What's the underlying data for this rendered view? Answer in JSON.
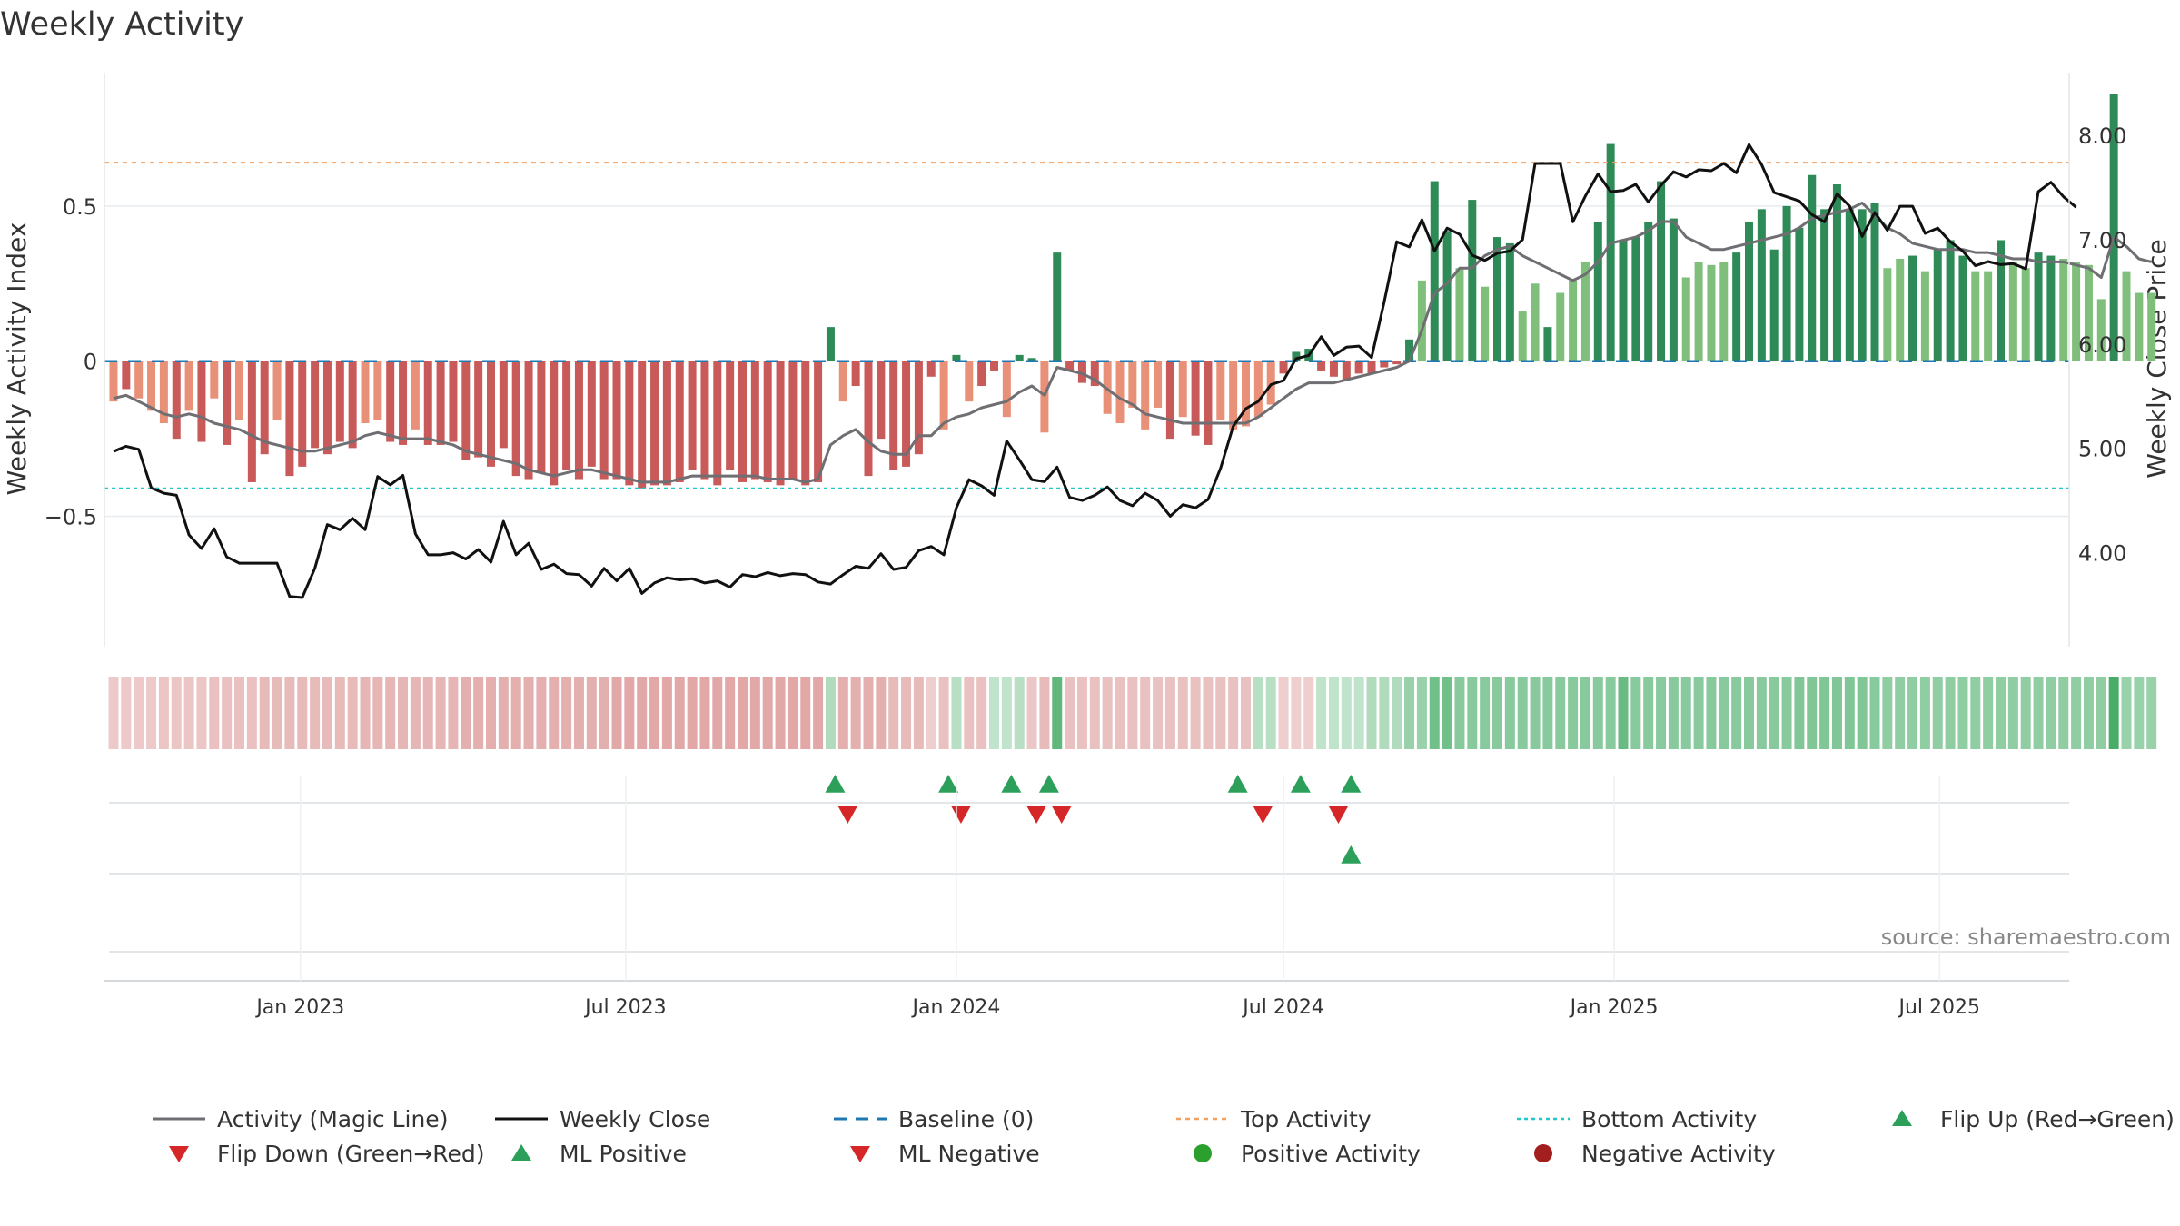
{
  "chart_data": {
    "type": "bar",
    "title": "Weekly Activity",
    "source": "source: sharemaestro.com",
    "ylabel_left": "Weekly Activity Index",
    "ylabel_right": "Weekly Close Price",
    "left_axis": {
      "range": [
        -0.92,
        0.93
      ],
      "ticks": [
        {
          "v": 0.5,
          "label": "0.5"
        },
        {
          "v": 0,
          "label": "0"
        },
        {
          "v": -0.5,
          "label": "−0.5"
        }
      ]
    },
    "right_axis": {
      "range": [
        3.1,
        8.6
      ],
      "ticks": [
        {
          "v": 8.0,
          "label": "8.00"
        },
        {
          "v": 7.0,
          "label": "7.00"
        },
        {
          "v": 6.0,
          "label": "6.00"
        },
        {
          "v": 5.0,
          "label": "5.00"
        },
        {
          "v": 4.0,
          "label": "4.00"
        }
      ]
    },
    "x_ticks": [
      {
        "date": "2023-01-01",
        "label": "Jan 2023"
      },
      {
        "date": "2023-07-01",
        "label": "Jul 2023"
      },
      {
        "date": "2024-01-01",
        "label": "Jan 2024"
      },
      {
        "date": "2024-07-01",
        "label": "Jul 2024"
      },
      {
        "date": "2025-01-01",
        "label": "Jan 2025"
      },
      {
        "date": "2025-07-01",
        "label": "Jul 2025"
      }
    ],
    "start_date": "2022-09-19",
    "activity": [
      -0.13,
      -0.09,
      -0.12,
      -0.16,
      -0.2,
      -0.25,
      -0.16,
      -0.26,
      -0.12,
      -0.27,
      -0.19,
      -0.39,
      -0.3,
      -0.19,
      -0.37,
      -0.34,
      -0.28,
      -0.3,
      -0.26,
      -0.28,
      -0.2,
      -0.19,
      -0.26,
      -0.27,
      -0.22,
      -0.27,
      -0.27,
      -0.26,
      -0.32,
      -0.31,
      -0.34,
      -0.28,
      -0.37,
      -0.38,
      -0.36,
      -0.4,
      -0.35,
      -0.38,
      -0.34,
      -0.38,
      -0.38,
      -0.4,
      -0.41,
      -0.4,
      -0.4,
      -0.39,
      -0.35,
      -0.38,
      -0.4,
      -0.35,
      -0.39,
      -0.38,
      -0.39,
      -0.4,
      -0.38,
      -0.4,
      -0.39,
      0.11,
      -0.13,
      -0.08,
      -0.37,
      -0.25,
      -0.35,
      -0.34,
      -0.3,
      -0.05,
      -0.22,
      0.02,
      -0.13,
      -0.08,
      -0.03,
      -0.18,
      0.02,
      0.01,
      -0.23,
      0.35,
      -0.03,
      -0.07,
      -0.08,
      -0.17,
      -0.2,
      -0.15,
      -0.22,
      -0.15,
      -0.25,
      -0.18,
      -0.24,
      -0.27,
      -0.19,
      -0.22,
      -0.21,
      -0.18,
      -0.14,
      -0.04,
      0.03,
      0.04,
      -0.03,
      -0.05,
      -0.06,
      -0.04,
      -0.04,
      -0.02,
      -0.01,
      0.07,
      0.26,
      0.58,
      0.42,
      0.3,
      0.52,
      0.24,
      0.4,
      0.38,
      0.16,
      0.25,
      0.11,
      0.22,
      0.26,
      0.32,
      0.45,
      0.7,
      0.39,
      0.4,
      0.45,
      0.58,
      0.46,
      0.27,
      0.32,
      0.31,
      0.32,
      0.35,
      0.45,
      0.49,
      0.36,
      0.5,
      0.43,
      0.6,
      0.49,
      0.57,
      0.49,
      0.49,
      0.51,
      0.3,
      0.33,
      0.34,
      0.29,
      0.36,
      0.39,
      0.34,
      0.29,
      0.29,
      0.39,
      0.32,
      0.3,
      0.35,
      0.34,
      0.33,
      0.32,
      0.31,
      0.2,
      0.86,
      0.29,
      0.22,
      0.22
    ],
    "magic_line": [
      -0.12,
      -0.11,
      -0.13,
      -0.15,
      -0.17,
      -0.18,
      -0.17,
      -0.18,
      -0.2,
      -0.21,
      -0.22,
      -0.24,
      -0.26,
      -0.27,
      -0.28,
      -0.29,
      -0.29,
      -0.28,
      -0.27,
      -0.26,
      -0.24,
      -0.23,
      -0.24,
      -0.25,
      -0.25,
      -0.25,
      -0.26,
      -0.27,
      -0.29,
      -0.3,
      -0.31,
      -0.32,
      -0.33,
      -0.35,
      -0.36,
      -0.37,
      -0.36,
      -0.35,
      -0.35,
      -0.36,
      -0.37,
      -0.38,
      -0.39,
      -0.39,
      -0.39,
      -0.38,
      -0.37,
      -0.37,
      -0.37,
      -0.37,
      -0.37,
      -0.37,
      -0.38,
      -0.38,
      -0.38,
      -0.39,
      -0.38,
      -0.27,
      -0.24,
      -0.22,
      -0.26,
      -0.29,
      -0.3,
      -0.3,
      -0.24,
      -0.24,
      -0.2,
      -0.18,
      -0.17,
      -0.15,
      -0.14,
      -0.13,
      -0.1,
      -0.08,
      -0.11,
      -0.02,
      -0.03,
      -0.04,
      -0.06,
      -0.09,
      -0.12,
      -0.14,
      -0.17,
      -0.18,
      -0.19,
      -0.2,
      -0.2,
      -0.2,
      -0.2,
      -0.2,
      -0.2,
      -0.18,
      -0.15,
      -0.12,
      -0.09,
      -0.07,
      -0.07,
      -0.07,
      -0.06,
      -0.05,
      -0.04,
      -0.03,
      -0.02,
      0.0,
      0.1,
      0.22,
      0.25,
      0.3,
      0.3,
      0.34,
      0.36,
      0.37,
      0.34,
      0.32,
      0.3,
      0.28,
      0.26,
      0.28,
      0.32,
      0.38,
      0.39,
      0.4,
      0.42,
      0.45,
      0.45,
      0.4,
      0.38,
      0.36,
      0.36,
      0.37,
      0.38,
      0.39,
      0.4,
      0.41,
      0.43,
      0.46,
      0.47,
      0.48,
      0.49,
      0.51,
      0.47,
      0.43,
      0.41,
      0.38,
      0.37,
      0.36,
      0.36,
      0.36,
      0.35,
      0.35,
      0.34,
      0.33,
      0.33,
      0.32,
      0.32,
      0.32,
      0.31,
      0.3,
      0.27,
      0.4,
      0.37,
      0.33,
      0.32
    ],
    "weekly_close": [
      4.97,
      5.02,
      4.99,
      4.62,
      4.57,
      4.55,
      4.17,
      4.04,
      4.23,
      3.96,
      3.9,
      3.9,
      3.9,
      3.9,
      3.58,
      3.57,
      3.85,
      4.27,
      4.22,
      4.33,
      4.22,
      4.73,
      4.65,
      4.74,
      4.18,
      3.98,
      3.98,
      4.0,
      3.94,
      4.03,
      3.91,
      4.3,
      3.98,
      4.09,
      3.84,
      3.89,
      3.8,
      3.79,
      3.68,
      3.85,
      3.73,
      3.85,
      3.61,
      3.71,
      3.76,
      3.74,
      3.75,
      3.71,
      3.73,
      3.67,
      3.79,
      3.77,
      3.81,
      3.78,
      3.8,
      3.79,
      3.72,
      3.7,
      3.79,
      3.87,
      3.85,
      3.99,
      3.84,
      3.86,
      4.02,
      4.06,
      3.98,
      4.43,
      4.7,
      4.64,
      4.55,
      5.07,
      4.89,
      4.7,
      4.68,
      4.82,
      4.53,
      4.5,
      4.55,
      4.63,
      4.5,
      4.45,
      4.57,
      4.5,
      4.35,
      4.46,
      4.43,
      4.51,
      4.81,
      5.21,
      5.38,
      5.45,
      5.61,
      5.65,
      5.86,
      5.89,
      6.07,
      5.89,
      5.97,
      5.98,
      5.87,
      6.4,
      6.98,
      6.93,
      7.19,
      6.89,
      7.11,
      7.05,
      6.85,
      6.8,
      6.87,
      6.89,
      7.0,
      7.73,
      7.73,
      7.73,
      7.17,
      7.42,
      7.63,
      7.46,
      7.47,
      7.53,
      7.36,
      7.52,
      7.65,
      7.6,
      7.67,
      7.66,
      7.73,
      7.64,
      7.91,
      7.72,
      7.45,
      7.41,
      7.37,
      7.24,
      7.17,
      7.44,
      7.32,
      7.03,
      7.26,
      7.09,
      7.32,
      7.32,
      7.06,
      7.11,
      6.98,
      6.89,
      6.75,
      6.79,
      6.76,
      6.77,
      6.72,
      7.46,
      7.55,
      7.41,
      7.31
    ],
    "top_activity": 0.64,
    "bottom_activity": -0.41,
    "baseline": 0,
    "heat_strip": [
      -0.24,
      -0.24,
      -0.24,
      -0.24,
      -0.27,
      -0.27,
      -0.27,
      -0.27,
      -0.31,
      -0.31,
      -0.31,
      -0.31,
      -0.35,
      -0.35,
      -0.35,
      -0.35,
      -0.35,
      -0.35,
      -0.35,
      -0.35,
      -0.4,
      -0.4,
      -0.4,
      -0.4,
      -0.4,
      -0.4,
      -0.4,
      -0.4,
      -0.45,
      -0.45,
      -0.45,
      -0.45,
      -0.45,
      -0.45,
      -0.45,
      -0.45,
      -0.45,
      -0.45,
      -0.45,
      -0.45,
      -0.5,
      -0.5,
      -0.5,
      -0.5,
      -0.5,
      -0.5,
      -0.5,
      -0.5,
      -0.5,
      -0.5,
      -0.5,
      -0.5,
      -0.5,
      -0.5,
      -0.5,
      -0.5,
      -0.5,
      0.3,
      -0.45,
      -0.45,
      -0.45,
      -0.45,
      -0.35,
      -0.35,
      -0.35,
      -0.2,
      -0.3,
      0.25,
      -0.3,
      -0.3,
      0.2,
      0.2,
      0.25,
      -0.25,
      -0.35,
      0.8,
      -0.3,
      -0.3,
      -0.3,
      -0.3,
      -0.3,
      -0.3,
      -0.3,
      -0.3,
      -0.3,
      -0.3,
      -0.3,
      -0.3,
      -0.3,
      -0.3,
      -0.3,
      0.25,
      0.25,
      -0.2,
      -0.2,
      -0.2,
      0.2,
      0.2,
      0.2,
      0.2,
      0.3,
      0.3,
      0.3,
      0.45,
      0.45,
      0.7,
      0.7,
      0.55,
      0.55,
      0.55,
      0.55,
      0.55,
      0.55,
      0.55,
      0.55,
      0.55,
      0.55,
      0.55,
      0.55,
      0.55,
      0.75,
      0.55,
      0.55,
      0.55,
      0.55,
      0.55,
      0.55,
      0.55,
      0.55,
      0.55,
      0.55,
      0.55,
      0.55,
      0.55,
      0.6,
      0.6,
      0.6,
      0.6,
      0.6,
      0.6,
      0.55,
      0.5,
      0.5,
      0.5,
      0.5,
      0.5,
      0.5,
      0.5,
      0.5,
      0.5,
      0.5,
      0.5,
      0.5,
      0.5,
      0.5,
      0.5,
      0.5,
      0.5,
      0.5,
      0.95,
      0.45,
      0.45,
      0.45
    ],
    "flip_up_weeks": [
      57,
      66,
      71,
      74,
      89,
      94,
      98
    ],
    "flip_down_weeks": [
      58,
      67,
      73,
      75,
      91,
      97
    ],
    "ml_positive_weeks": [
      98
    ],
    "ml_negative_weeks": [],
    "positive_activity_weeks": [],
    "negative_activity_weeks": [],
    "colors": {
      "strong_pos": "#2e8b57",
      "weak_pos": "#7fbf7b",
      "strong_neg": "#c85a5a",
      "weak_neg": "#e89178",
      "magic_line": "#6e6e73",
      "close": "#111111",
      "baseline": "#1f77b4",
      "top": "#f0a060",
      "bottom": "#20c8c8",
      "flip_up": "#2ca05a",
      "flip_down": "#d62728",
      "pos_dot": "#2ca02c",
      "neg_dot": "#a31f1f"
    },
    "legend": [
      {
        "key": "magic",
        "label": "Activity (Magic Line)"
      },
      {
        "key": "close",
        "label": "Weekly Close"
      },
      {
        "key": "baseline",
        "label": "Baseline (0)"
      },
      {
        "key": "top",
        "label": "Top Activity"
      },
      {
        "key": "bottom",
        "label": "Bottom Activity"
      },
      {
        "key": "flipup",
        "label": "Flip Up (Red→Green)"
      },
      {
        "key": "flipdown",
        "label": "Flip Down (Green→Red)"
      },
      {
        "key": "mlpos",
        "label": "ML Positive"
      },
      {
        "key": "mlneg",
        "label": "ML Negative"
      },
      {
        "key": "posact",
        "label": "Positive Activity"
      },
      {
        "key": "negact",
        "label": "Negative Activity"
      }
    ]
  }
}
